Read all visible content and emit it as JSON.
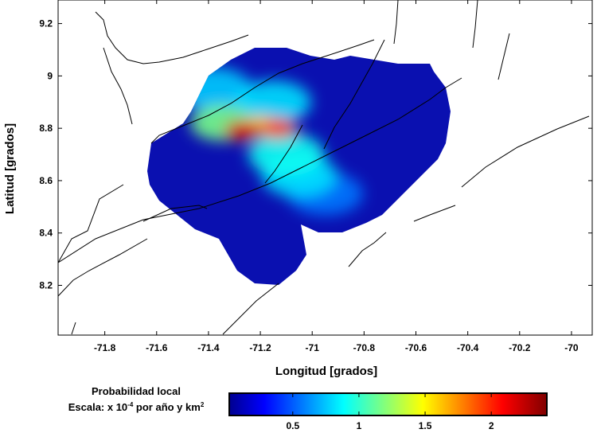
{
  "chart_data": {
    "type": "heatmap",
    "xlabel": "Longitud [grados]",
    "ylabel": "Latitud [grados]",
    "xlim": [
      -71.98,
      -69.92
    ],
    "ylim": [
      8.01,
      9.29
    ],
    "xticks": [
      -71.8,
      -71.6,
      -71.4,
      -71.2,
      -71,
      -70.8,
      -70.6,
      -70.4,
      -70.2,
      -70
    ],
    "xtick_labels": [
      "-71.8",
      "-71.6",
      "-71.4",
      "-71.2",
      "-71",
      "-70.8",
      "-70.6",
      "-70.4",
      "-70.2",
      "-70"
    ],
    "yticks": [
      8.2,
      8.4,
      8.6,
      8.8,
      9.0,
      9.2
    ],
    "ytick_labels": [
      "8.2",
      "8.4",
      "8.6",
      "8.8",
      "9",
      "9.2"
    ],
    "colorbar": {
      "title_line1": "Probabilidad local",
      "title_line2": "Escala: x 10-4 por año y km2",
      "range": [
        0.02,
        2.42
      ],
      "ticks": [
        0.5,
        1,
        1.5,
        2
      ],
      "tick_labels": [
        "0.5",
        "1",
        "1.5",
        "2"
      ],
      "colormap": "jet"
    },
    "background_value": 0.2,
    "hotspots": [
      {
        "lon": -71.27,
        "lat": 8.79,
        "value": 2.2
      },
      {
        "lon": -71.13,
        "lat": 8.8,
        "value": 2.0
      },
      {
        "lon": -71.2,
        "lat": 8.81,
        "value": 1.6
      },
      {
        "lon": -71.35,
        "lat": 8.82,
        "value": 1.2
      },
      {
        "lon": -71.1,
        "lat": 8.7,
        "value": 0.95
      },
      {
        "lon": -71.05,
        "lat": 8.62,
        "value": 0.85
      },
      {
        "lon": -71.38,
        "lat": 8.95,
        "value": 0.8
      },
      {
        "lon": -71.15,
        "lat": 8.9,
        "value": 0.85
      },
      {
        "lon": -70.95,
        "lat": 8.55,
        "value": 0.6
      }
    ]
  }
}
